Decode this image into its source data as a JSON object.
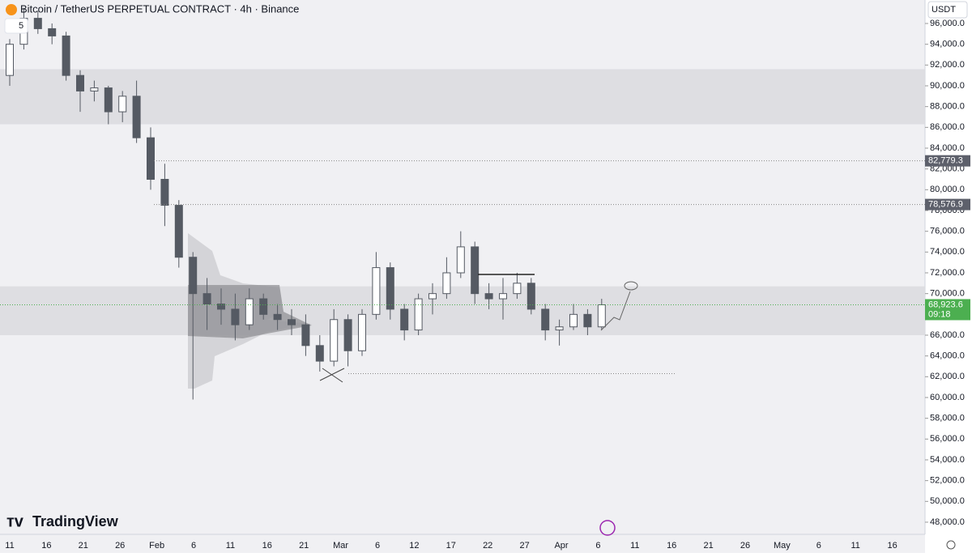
{
  "header": {
    "title": "Bitcoin / TetherUS PERPETUAL CONTRACT · 4h · Binance",
    "interval_count": "5",
    "currency": "USDT"
  },
  "branding": "TradingView",
  "chart_data": {
    "type": "candlestick",
    "color": "#555a63",
    "x_labels": [
      "11",
      "16",
      "21",
      "26",
      "Feb",
      "6",
      "11",
      "16",
      "21",
      "Mar",
      "6",
      "12",
      "17",
      "22",
      "27",
      "Apr",
      "6",
      "11",
      "16",
      "21",
      "26",
      "May",
      "6",
      "11",
      "16"
    ],
    "open": [
      91000,
      94000,
      96500,
      95500,
      94800,
      91000,
      89500,
      89800,
      87500,
      89000,
      85000,
      81000,
      78500,
      73500,
      70000,
      69000,
      68500,
      67000,
      69500,
      68000,
      67500,
      67000,
      65000,
      63500,
      67500,
      64500,
      68000,
      72500,
      68500,
      66500,
      69500,
      70000,
      72000,
      74500,
      70000,
      69500,
      70000,
      71000,
      68500,
      66500,
      66800,
      68000,
      66800
    ],
    "high": [
      94500,
      97500,
      97200,
      96000,
      95200,
      91500,
      90500,
      90000,
      89500,
      90500,
      86000,
      82500,
      79000,
      74000,
      71500,
      70500,
      70000,
      70500,
      70000,
      69000,
      68500,
      68000,
      66000,
      68500,
      68000,
      68500,
      74000,
      73000,
      69000,
      70000,
      71000,
      73500,
      76000,
      75000,
      71000,
      71500,
      72000,
      71500,
      69000,
      67500,
      69000,
      68500,
      69500
    ],
    "low": [
      90000,
      93500,
      95000,
      94000,
      90500,
      87500,
      88500,
      86300,
      86500,
      84500,
      80000,
      76500,
      72500,
      59800,
      66500,
      67000,
      65500,
      66500,
      67500,
      66500,
      66000,
      64000,
      62500,
      63000,
      63000,
      64000,
      67500,
      67500,
      65500,
      66000,
      68000,
      69500,
      71500,
      69000,
      68500,
      67500,
      69500,
      68000,
      65500,
      65000,
      66500,
      66000,
      66500
    ],
    "close": [
      94000,
      96500,
      95500,
      94800,
      91000,
      89500,
      89800,
      87500,
      89000,
      85000,
      81000,
      78500,
      73500,
      70000,
      69000,
      68500,
      67000,
      69500,
      68000,
      67500,
      67000,
      65000,
      63500,
      67500,
      64500,
      68000,
      72500,
      68500,
      66500,
      69500,
      70000,
      72000,
      74500,
      70000,
      69500,
      70000,
      71000,
      68500,
      66500,
      66800,
      68000,
      66800,
      68923.6
    ],
    "ylim": [
      46830,
      98260
    ],
    "yticks": [
      {
        "value": 48000,
        "label": "48,000.0"
      },
      {
        "value": 50000,
        "label": "50,000.0"
      },
      {
        "value": 52000,
        "label": "52,000.0"
      },
      {
        "value": 54000,
        "label": "54,000.0"
      },
      {
        "value": 56000,
        "label": "56,000.0"
      },
      {
        "value": 58000,
        "label": "58,000.0"
      },
      {
        "value": 60000,
        "label": "60,000.0"
      },
      {
        "value": 62000,
        "label": "62,000.0"
      },
      {
        "value": 64000,
        "label": "64,000.0"
      },
      {
        "value": 66000,
        "label": "66,000.0"
      },
      {
        "value": 68000,
        "label": "68,000.0"
      },
      {
        "value": 70000,
        "label": "70,000.0"
      },
      {
        "value": 72000,
        "label": "72,000.0"
      },
      {
        "value": 74000,
        "label": "74,000.0"
      },
      {
        "value": 76000,
        "label": "76,000.0"
      },
      {
        "value": 78000,
        "label": "78,000.0"
      },
      {
        "value": 80000,
        "label": "80,000.0"
      },
      {
        "value": 82000,
        "label": "82,000.0"
      },
      {
        "value": 84000,
        "label": "84,000.0"
      },
      {
        "value": 86000,
        "label": "86,000.0"
      },
      {
        "value": 88000,
        "label": "88,000.0"
      },
      {
        "value": 90000,
        "label": "90,000.0"
      },
      {
        "value": 92000,
        "label": "92,000.0"
      },
      {
        "value": 94000,
        "label": "94,000.0"
      },
      {
        "value": 96000,
        "label": "96,000.0"
      }
    ],
    "zones": [
      {
        "low": 86300,
        "high": 91600
      },
      {
        "low": 66000,
        "high": 70700
      }
    ],
    "levels": [
      {
        "value": 82779.3,
        "label": "82,779.3"
      },
      {
        "value": 78576.9,
        "label": "78,576.9"
      },
      {
        "value": 62300
      }
    ],
    "last_price": {
      "value": 68923.6,
      "label": "68,923.6",
      "countdown": "09:18"
    }
  }
}
